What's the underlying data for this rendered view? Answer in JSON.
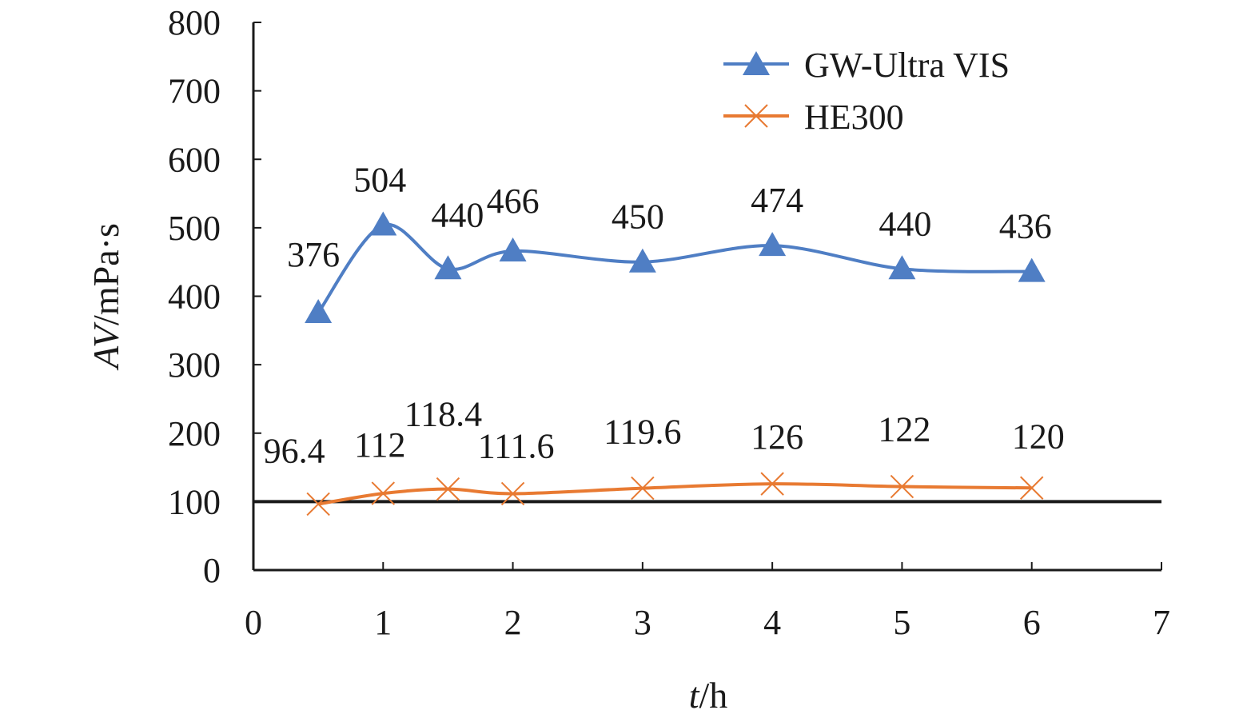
{
  "chart_data": {
    "type": "line",
    "title": "",
    "xlabel": {
      "var": "t",
      "unit": "/h"
    },
    "ylabel": {
      "var": "AV",
      "unit": "/mPa·s"
    },
    "xlim": [
      0,
      7
    ],
    "ylim": [
      0,
      800
    ],
    "xticks": [
      0,
      1,
      2,
      3,
      4,
      5,
      6,
      7
    ],
    "yticks": [
      0,
      100,
      200,
      300,
      400,
      500,
      600,
      700,
      800
    ],
    "grid": false,
    "legend_position": "top-right",
    "reference_line": {
      "y": 100
    },
    "series": [
      {
        "name": "GW-Ultra VIS",
        "color": "#4f7ec4",
        "marker": "triangle",
        "x": [
          0.5,
          1,
          1.5,
          2,
          3,
          4,
          5,
          6
        ],
        "y": [
          376,
          504,
          440,
          466,
          450,
          474,
          440,
          436
        ],
        "labels": [
          "376",
          "504",
          "440",
          "466",
          "450",
          "474",
          "440",
          "436"
        ]
      },
      {
        "name": "HE300",
        "color": "#e87a32",
        "marker": "x",
        "x": [
          0.5,
          1,
          1.5,
          2,
          3,
          4,
          5,
          6
        ],
        "y": [
          96.4,
          112,
          118.4,
          111.6,
          119.6,
          126,
          122,
          120
        ],
        "labels": [
          "96.4",
          "112",
          "118.4",
          "111.6",
          "119.6",
          "126",
          "122",
          "120"
        ]
      }
    ]
  }
}
